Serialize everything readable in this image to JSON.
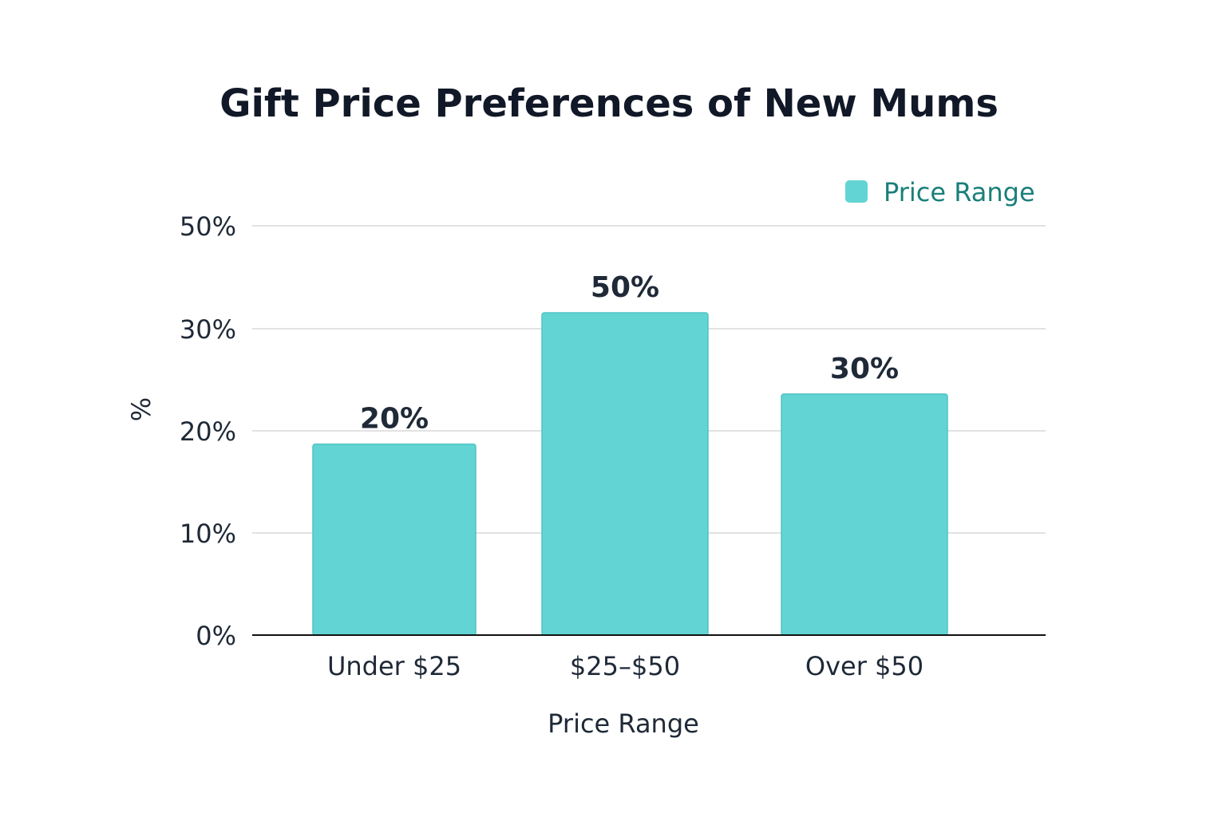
{
  "chart_data": {
    "type": "bar",
    "title": "Gift Price Preferences of New Mums",
    "xlabel": "Price Range",
    "ylabel": "%",
    "categories": [
      "Under $25",
      "$25–$50",
      "Over $50"
    ],
    "series": [
      {
        "name": "Price Range",
        "values": [
          20,
          50,
          30
        ]
      }
    ],
    "data_labels": [
      "20%",
      "50%",
      "30%"
    ],
    "y_ticks": [
      0,
      10,
      20,
      30,
      50
    ],
    "y_tick_labels": [
      "0%",
      "10%",
      "20%",
      "30%",
      "50%"
    ],
    "grid": true,
    "legend_position": "top-right",
    "colors": {
      "bar": "#63d4d4",
      "bar_border": "#4fc4c4",
      "legend_text": "#1a7f7a",
      "title": "#111827",
      "grid": "#d9d9d9"
    }
  }
}
